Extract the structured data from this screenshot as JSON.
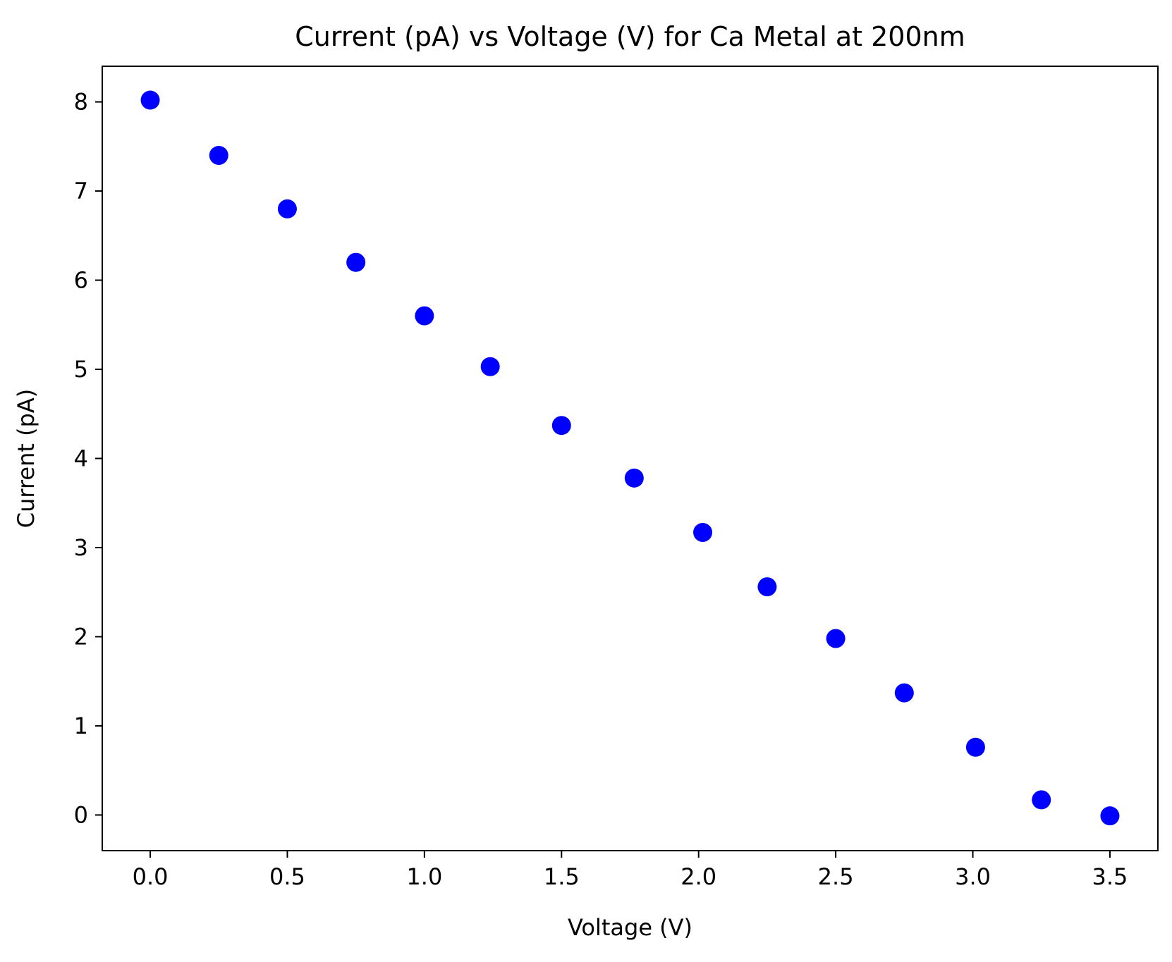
{
  "chart_data": {
    "type": "scatter",
    "title": "Current (pA) vs Voltage (V) for Ca Metal at 200nm",
    "xlabel": "Voltage (V)",
    "ylabel": "Current (pA)",
    "xlim": [
      -0.175,
      3.675
    ],
    "ylim": [
      -0.4,
      8.4
    ],
    "xticks": [
      0.0,
      0.5,
      1.0,
      1.5,
      2.0,
      2.5,
      3.0,
      3.5
    ],
    "xtick_labels": [
      "0.0",
      "0.5",
      "1.0",
      "1.5",
      "2.0",
      "2.5",
      "3.0",
      "3.5"
    ],
    "yticks": [
      0,
      1,
      2,
      3,
      4,
      5,
      6,
      7,
      8
    ],
    "ytick_labels": [
      "0",
      "1",
      "2",
      "3",
      "4",
      "5",
      "6",
      "7",
      "8"
    ],
    "grid": false,
    "legend": "none",
    "marker_color": "#0000ff",
    "series": [
      {
        "x": [
          0.0,
          0.25,
          0.5,
          0.75,
          1.0,
          1.24,
          1.5,
          1.765,
          2.015,
          2.25,
          2.5,
          2.75,
          3.01,
          3.25,
          3.5
        ],
        "y": [
          8.02,
          7.4,
          6.8,
          6.2,
          5.6,
          5.03,
          4.37,
          3.78,
          3.17,
          2.56,
          1.98,
          1.37,
          0.76,
          0.17,
          -0.01
        ]
      }
    ]
  }
}
